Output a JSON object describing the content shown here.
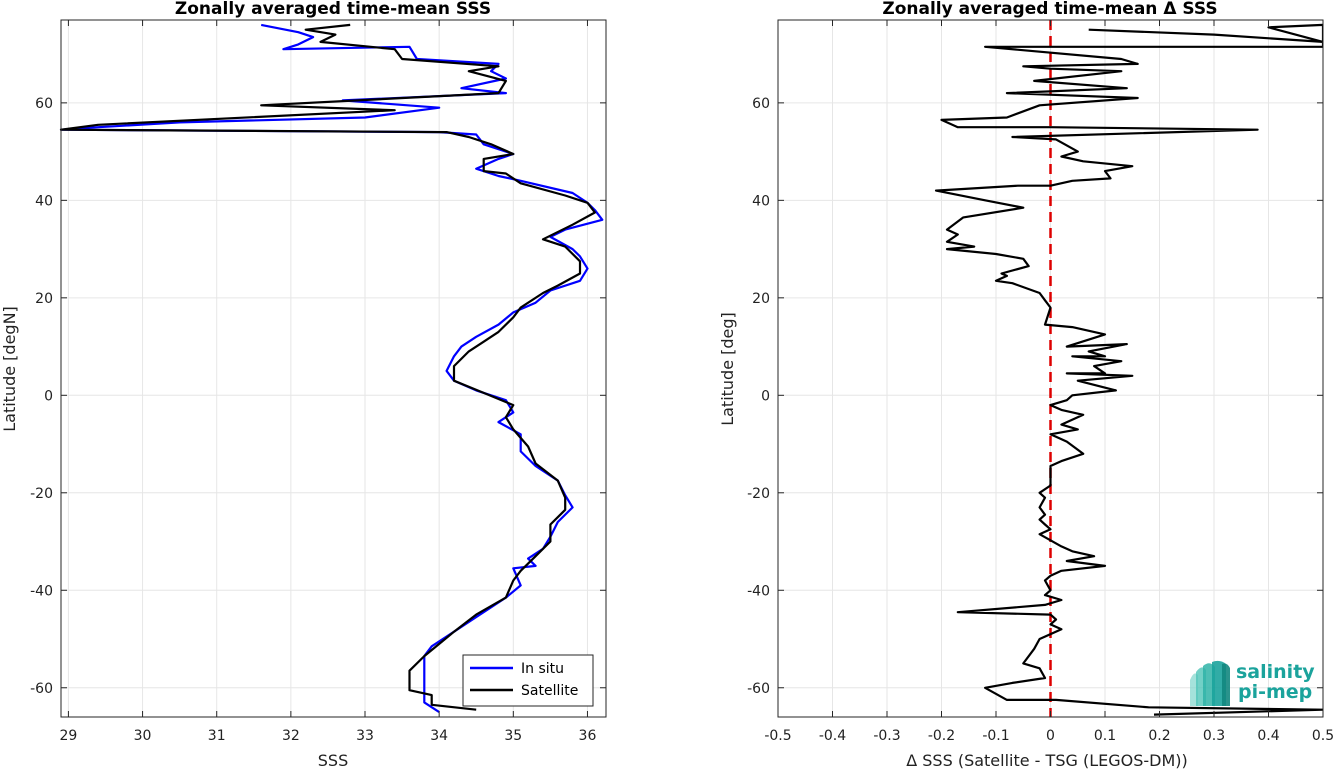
{
  "chart_data": [
    {
      "type": "line",
      "title": "Zonally averaged time-mean SSS",
      "xlabel": "SSS",
      "ylabel": "Latitude [degN]",
      "xlim": [
        28.9,
        36.25
      ],
      "ylim": [
        -66,
        77
      ],
      "xticks": [
        29,
        30,
        31,
        32,
        33,
        34,
        35,
        36
      ],
      "yticks": [
        -60,
        -40,
        -20,
        0,
        20,
        40,
        60
      ],
      "grid": true,
      "legend": {
        "placement": "bottom-right",
        "entries": [
          "In situ",
          "Satellite"
        ]
      },
      "series": [
        {
          "name": "In situ",
          "color": "#0000ff",
          "points": [
            [
              31.6,
              76
            ],
            [
              32.1,
              74.5
            ],
            [
              32.3,
              73.5
            ],
            [
              32.1,
              72
            ],
            [
              31.9,
              71
            ],
            [
              33.6,
              71.5
            ],
            [
              33.7,
              69
            ],
            [
              34.8,
              68
            ],
            [
              34.7,
              66.5
            ],
            [
              34.9,
              65
            ],
            [
              34.3,
              63
            ],
            [
              34.9,
              62
            ],
            [
              32.7,
              60.5
            ],
            [
              34.0,
              59
            ],
            [
              33.0,
              57
            ],
            [
              30.5,
              56
            ],
            [
              29.4,
              55
            ],
            [
              28.9,
              54.5
            ],
            [
              34.0,
              54
            ],
            [
              34.5,
              53.5
            ],
            [
              34.6,
              51.5
            ],
            [
              35.0,
              49.5
            ],
            [
              34.8,
              48.5
            ],
            [
              34.5,
              46.5
            ],
            [
              34.8,
              45
            ],
            [
              35.1,
              44
            ],
            [
              35.8,
              41.5
            ],
            [
              36.0,
              39.5
            ],
            [
              36.1,
              38
            ],
            [
              36.2,
              36
            ],
            [
              35.7,
              34
            ],
            [
              35.5,
              32.5
            ],
            [
              35.8,
              30
            ],
            [
              35.9,
              28.5
            ],
            [
              36.0,
              26
            ],
            [
              35.9,
              23.5
            ],
            [
              35.5,
              21.5
            ],
            [
              35.3,
              19
            ],
            [
              35.0,
              17
            ],
            [
              34.8,
              14.5
            ],
            [
              34.5,
              12
            ],
            [
              34.3,
              10
            ],
            [
              34.2,
              8
            ],
            [
              34.1,
              5
            ],
            [
              34.2,
              3
            ],
            [
              34.5,
              1
            ],
            [
              34.9,
              -1
            ],
            [
              35.0,
              -3.5
            ],
            [
              34.8,
              -5.5
            ],
            [
              35.1,
              -8
            ],
            [
              35.1,
              -11.5
            ],
            [
              35.3,
              -14.5
            ],
            [
              35.6,
              -17.5
            ],
            [
              35.7,
              -20.5
            ],
            [
              35.8,
              -23
            ],
            [
              35.6,
              -26
            ],
            [
              35.5,
              -29
            ],
            [
              35.4,
              -31.5
            ],
            [
              35.2,
              -33.5
            ],
            [
              35.3,
              -35
            ],
            [
              35.0,
              -35.5
            ],
            [
              35.1,
              -39
            ],
            [
              34.9,
              -41.5
            ],
            [
              34.5,
              -45.5
            ],
            [
              34.2,
              -48.5
            ],
            [
              33.9,
              -51.5
            ],
            [
              33.8,
              -53.5
            ],
            [
              33.8,
              -57
            ],
            [
              33.8,
              -61
            ],
            [
              33.8,
              -63
            ],
            [
              34.0,
              -65
            ]
          ]
        },
        {
          "name": "Satellite",
          "color": "#000000",
          "points": [
            [
              32.8,
              76
            ],
            [
              32.2,
              75
            ],
            [
              32.6,
              74
            ],
            [
              32.4,
              72.5
            ],
            [
              33.4,
              71
            ],
            [
              33.5,
              69
            ],
            [
              34.8,
              67.5
            ],
            [
              34.4,
              66.5
            ],
            [
              34.9,
              64.5
            ],
            [
              34.8,
              62
            ],
            [
              31.6,
              59.5
            ],
            [
              33.4,
              58.5
            ],
            [
              29.4,
              55.5
            ],
            [
              28.9,
              54.5
            ],
            [
              34.1,
              54
            ],
            [
              34.4,
              53
            ],
            [
              34.7,
              51.5
            ],
            [
              35.0,
              49.5
            ],
            [
              34.6,
              48.5
            ],
            [
              34.6,
              46
            ],
            [
              34.9,
              45.5
            ],
            [
              35.1,
              43.5
            ],
            [
              35.7,
              41
            ],
            [
              36.0,
              39.5
            ],
            [
              36.1,
              37.5
            ],
            [
              35.8,
              35
            ],
            [
              35.4,
              32
            ],
            [
              35.7,
              30.5
            ],
            [
              35.9,
              27.5
            ],
            [
              35.9,
              25
            ],
            [
              35.6,
              22.5
            ],
            [
              35.4,
              21
            ],
            [
              35.1,
              18
            ],
            [
              35.0,
              16
            ],
            [
              34.8,
              13
            ],
            [
              34.6,
              11
            ],
            [
              34.4,
              9
            ],
            [
              34.2,
              6
            ],
            [
              34.2,
              3
            ],
            [
              34.6,
              0.5
            ],
            [
              35.0,
              -2
            ],
            [
              34.9,
              -4.5
            ],
            [
              35.0,
              -7
            ],
            [
              35.2,
              -10.5
            ],
            [
              35.3,
              -14
            ],
            [
              35.6,
              -17.5
            ],
            [
              35.7,
              -21
            ],
            [
              35.7,
              -23.5
            ],
            [
              35.5,
              -26.5
            ],
            [
              35.5,
              -30
            ],
            [
              35.3,
              -33
            ],
            [
              35.1,
              -36
            ],
            [
              35.0,
              -38
            ],
            [
              34.9,
              -41.5
            ],
            [
              34.5,
              -45
            ],
            [
              34.2,
              -48.5
            ],
            [
              34.0,
              -51
            ],
            [
              33.8,
              -53.5
            ],
            [
              33.6,
              -56.5
            ],
            [
              33.6,
              -59
            ],
            [
              33.6,
              -60.5
            ],
            [
              33.9,
              -61.5
            ],
            [
              33.9,
              -63.5
            ],
            [
              34.5,
              -64.5
            ]
          ]
        }
      ]
    },
    {
      "type": "line",
      "title": "Zonally averaged time-mean Δ SSS",
      "xlabel": "Δ SSS (Satellite - TSG (LEGOS-DM))",
      "ylabel": "Latitude [deg]",
      "xlim": [
        -0.5,
        0.5
      ],
      "ylim": [
        -66,
        77
      ],
      "xticks": [
        -0.5,
        -0.4,
        -0.3,
        -0.2,
        -0.1,
        0,
        0.1,
        0.2,
        0.3,
        0.4,
        0.5
      ],
      "xticklabels": [
        "-0.5",
        "-0.4",
        "-0.3",
        "-0.2",
        "-0.1",
        "0",
        "0.1",
        "0.2",
        "0.3",
        "0.4",
        "0.5"
      ],
      "yticks": [
        -60,
        -40,
        -20,
        0,
        20,
        40,
        60
      ],
      "grid": true,
      "reference_line": {
        "x": 0,
        "color": "#dd0000",
        "style": "dashed"
      },
      "series": [
        {
          "color": "#000000",
          "points": [
            [
              0.07,
              75
            ],
            [
              0.3,
              74
            ],
            [
              0.5,
              72.5
            ],
            [
              0.4,
              75.5
            ],
            [
              0.5,
              76
            ],
            [
              0.5,
              71.5
            ],
            [
              -0.12,
              71.5
            ],
            [
              0.13,
              69
            ],
            [
              0.16,
              68
            ],
            [
              -0.05,
              67.5
            ],
            [
              0.0,
              67
            ],
            [
              0.13,
              66.5
            ],
            [
              -0.03,
              64.5
            ],
            [
              0.14,
              63
            ],
            [
              -0.08,
              62
            ],
            [
              0.16,
              61
            ],
            [
              -0.02,
              59.5
            ],
            [
              -0.08,
              57
            ],
            [
              -0.2,
              56.5
            ],
            [
              -0.17,
              55
            ],
            [
              0.0,
              55
            ],
            [
              0.38,
              54.5
            ],
            [
              -0.07,
              53
            ],
            [
              0.01,
              52.5
            ],
            [
              0.05,
              50
            ],
            [
              0.02,
              49
            ],
            [
              0.06,
              48
            ],
            [
              0.15,
              47
            ],
            [
              0.1,
              46
            ],
            [
              0.11,
              44.5
            ],
            [
              0.04,
              44
            ],
            [
              0.0,
              43
            ],
            [
              -0.06,
              43
            ],
            [
              -0.21,
              42
            ],
            [
              -0.12,
              40
            ],
            [
              -0.05,
              38.5
            ],
            [
              -0.16,
              36.5
            ],
            [
              -0.19,
              34
            ],
            [
              -0.17,
              33
            ],
            [
              -0.19,
              31.5
            ],
            [
              -0.14,
              30.5
            ],
            [
              -0.19,
              30
            ],
            [
              -0.1,
              29
            ],
            [
              -0.05,
              28
            ],
            [
              -0.04,
              26.5
            ],
            [
              -0.09,
              25
            ],
            [
              -0.08,
              24.5
            ],
            [
              -0.1,
              23.5
            ],
            [
              -0.07,
              23
            ],
            [
              -0.02,
              21
            ],
            [
              -0.01,
              19.5
            ],
            [
              0.0,
              18
            ],
            [
              -0.01,
              14.5
            ],
            [
              0.04,
              14
            ],
            [
              0.1,
              12.5
            ],
            [
              0.03,
              10
            ],
            [
              0.14,
              10.5
            ],
            [
              0.07,
              9
            ],
            [
              0.1,
              8
            ],
            [
              0.04,
              8
            ],
            [
              0.13,
              7
            ],
            [
              0.08,
              6
            ],
            [
              0.1,
              4.5
            ],
            [
              0.03,
              4.5
            ],
            [
              0.15,
              4
            ],
            [
              0.05,
              3
            ],
            [
              0.12,
              1
            ],
            [
              0.04,
              0
            ],
            [
              0.03,
              -1
            ],
            [
              0.0,
              -2
            ],
            [
              0.02,
              -3
            ],
            [
              0.06,
              -4
            ],
            [
              0.02,
              -6
            ],
            [
              0.05,
              -7
            ],
            [
              0.0,
              -8
            ],
            [
              0.03,
              -9.5
            ],
            [
              0.06,
              -12
            ],
            [
              0.02,
              -13.5
            ],
            [
              0.0,
              -14.5
            ],
            [
              0.0,
              -16
            ],
            [
              0.0,
              -18.5
            ],
            [
              -0.02,
              -20
            ],
            [
              -0.01,
              -21
            ],
            [
              -0.02,
              -23
            ],
            [
              -0.01,
              -24.5
            ],
            [
              -0.02,
              -25.5
            ],
            [
              -0.01,
              -26.5
            ],
            [
              0.0,
              -27.5
            ],
            [
              -0.02,
              -28.5
            ],
            [
              0.02,
              -31
            ],
            [
              0.04,
              -32
            ],
            [
              0.08,
              -33
            ],
            [
              0.03,
              -34
            ],
            [
              0.1,
              -35
            ],
            [
              0.02,
              -36
            ],
            [
              0.0,
              -37
            ],
            [
              -0.01,
              -38
            ],
            [
              0.0,
              -40
            ],
            [
              -0.01,
              -41
            ],
            [
              0.02,
              -42
            ],
            [
              -0.01,
              -43
            ],
            [
              -0.17,
              -44.5
            ],
            [
              0.0,
              -45
            ],
            [
              0.01,
              -46
            ],
            [
              0.0,
              -47
            ],
            [
              0.02,
              -48
            ],
            [
              -0.02,
              -50
            ],
            [
              -0.03,
              -52
            ],
            [
              -0.05,
              -55
            ],
            [
              -0.02,
              -56
            ],
            [
              -0.01,
              -58
            ],
            [
              -0.07,
              -59
            ],
            [
              -0.12,
              -60
            ],
            [
              -0.08,
              -62.5
            ],
            [
              0.01,
              -62.5
            ],
            [
              0.18,
              -64
            ],
            [
              0.5,
              -64.5
            ],
            [
              0.19,
              -65.5
            ]
          ]
        }
      ]
    }
  ],
  "logo": {
    "line1": "salinity",
    "line2": "pi-mep",
    "accent": "#1ba39c"
  }
}
